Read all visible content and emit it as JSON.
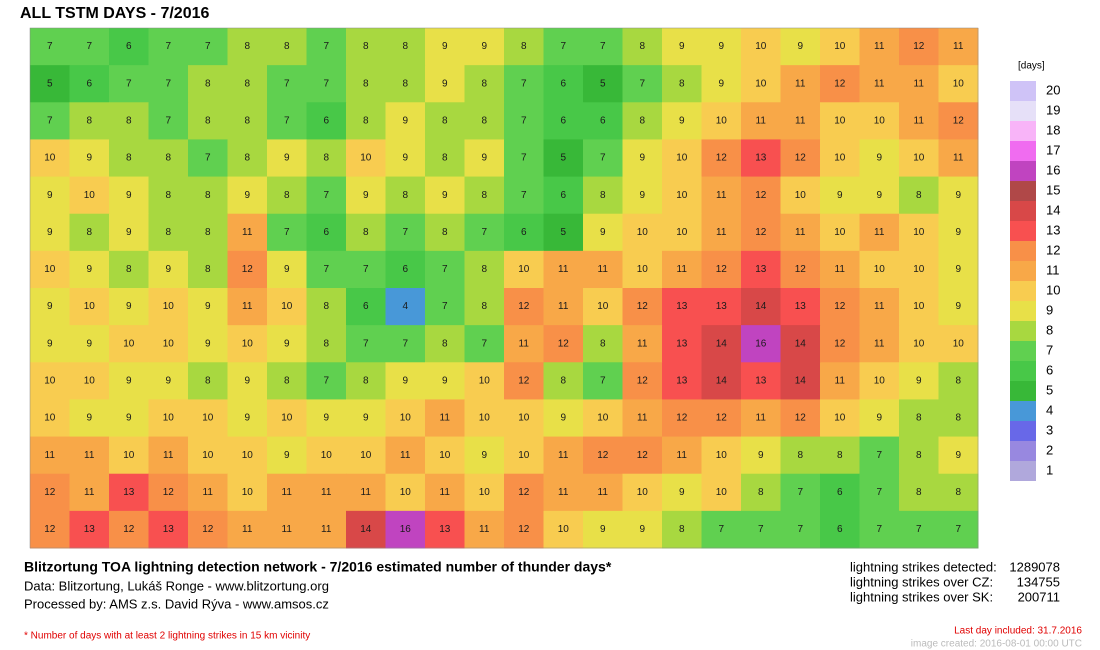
{
  "title": "ALL TSTM DAYS - 7/2016",
  "map": {
    "grid": [
      [
        7,
        7,
        6,
        7,
        7,
        8,
        8,
        7,
        8,
        8,
        9,
        9,
        8,
        7,
        7,
        8,
        9,
        9,
        10,
        9,
        10,
        11,
        12,
        11
      ],
      [
        5,
        6,
        7,
        7,
        8,
        8,
        7,
        7,
        8,
        8,
        9,
        8,
        7,
        6,
        5,
        7,
        8,
        9,
        10,
        11,
        12,
        11,
        11,
        10
      ],
      [
        7,
        8,
        8,
        7,
        8,
        8,
        7,
        6,
        8,
        9,
        8,
        8,
        7,
        6,
        6,
        8,
        9,
        10,
        11,
        11,
        10,
        10,
        11,
        12
      ],
      [
        10,
        9,
        8,
        8,
        7,
        8,
        9,
        8,
        10,
        9,
        8,
        9,
        7,
        5,
        7,
        9,
        10,
        12,
        13,
        12,
        10,
        9,
        10,
        11
      ],
      [
        9,
        10,
        9,
        8,
        8,
        9,
        8,
        7,
        9,
        8,
        9,
        8,
        7,
        6,
        8,
        9,
        10,
        11,
        12,
        10,
        9,
        9,
        8,
        9
      ],
      [
        9,
        8,
        9,
        8,
        8,
        11,
        7,
        6,
        8,
        7,
        8,
        7,
        6,
        5,
        9,
        10,
        10,
        11,
        12,
        11,
        10,
        11,
        10,
        9
      ],
      [
        10,
        9,
        8,
        9,
        8,
        12,
        9,
        7,
        7,
        6,
        7,
        8,
        10,
        11,
        11,
        10,
        11,
        12,
        13,
        12,
        11,
        10,
        10,
        9
      ],
      [
        9,
        10,
        9,
        10,
        9,
        11,
        10,
        8,
        6,
        4,
        7,
        8,
        12,
        11,
        10,
        12,
        13,
        13,
        14,
        13,
        12,
        11,
        10,
        9
      ],
      [
        9,
        9,
        10,
        10,
        9,
        10,
        9,
        8,
        7,
        7,
        8,
        7,
        11,
        12,
        8,
        11,
        13,
        14,
        16,
        14,
        12,
        11,
        10,
        10
      ],
      [
        10,
        10,
        9,
        9,
        8,
        9,
        8,
        7,
        8,
        9,
        9,
        10,
        12,
        8,
        7,
        12,
        13,
        14,
        13,
        14,
        11,
        10,
        9,
        8
      ],
      [
        10,
        9,
        9,
        10,
        10,
        9,
        10,
        9,
        9,
        10,
        11,
        10,
        10,
        9,
        10,
        11,
        12,
        12,
        11,
        12,
        10,
        9,
        8,
        8
      ],
      [
        11,
        11,
        10,
        11,
        10,
        10,
        9,
        10,
        10,
        11,
        10,
        9,
        10,
        11,
        12,
        12,
        11,
        10,
        9,
        8,
        8,
        7,
        8,
        9
      ],
      [
        12,
        11,
        13,
        12,
        11,
        10,
        11,
        11,
        11,
        10,
        11,
        10,
        12,
        11,
        11,
        10,
        9,
        10,
        8,
        7,
        6,
        7,
        8,
        8
      ],
      [
        12,
        13,
        12,
        13,
        12,
        11,
        11,
        11,
        14,
        16,
        13,
        11,
        12,
        10,
        9,
        9,
        8,
        7,
        7,
        7,
        6,
        7,
        7,
        7
      ]
    ]
  },
  "legend": {
    "unit": "[days]",
    "levels": [
      {
        "value": 20,
        "color": "#cfc3f7"
      },
      {
        "value": 19,
        "color": "#e6e0f8"
      },
      {
        "value": 18,
        "color": "#f8b4f8"
      },
      {
        "value": 17,
        "color": "#f06cf0"
      },
      {
        "value": 16,
        "color": "#c044c0"
      },
      {
        "value": 15,
        "color": "#b04848"
      },
      {
        "value": 14,
        "color": "#d84848"
      },
      {
        "value": 13,
        "color": "#f85050"
      },
      {
        "value": 12,
        "color": "#f89048"
      },
      {
        "value": 11,
        "color": "#f8a848"
      },
      {
        "value": 10,
        "color": "#f8cc50"
      },
      {
        "value": 9,
        "color": "#e8e048"
      },
      {
        "value": 8,
        "color": "#a8d840"
      },
      {
        "value": 7,
        "color": "#60d050"
      },
      {
        "value": 6,
        "color": "#48c848"
      },
      {
        "value": 5,
        "color": "#38b838"
      },
      {
        "value": 4,
        "color": "#4898d8"
      },
      {
        "value": 3,
        "color": "#6868e8"
      },
      {
        "value": 2,
        "color": "#9888e0"
      },
      {
        "value": 1,
        "color": "#b0a8dc"
      }
    ]
  },
  "footer": {
    "headline": "Blitzortung TOA lightning detection network - 7/2016  estimated number of thunder days*",
    "data_line": "Data: Blitzortung, Lukáš Ronge - www.blitzortung.org",
    "processed_line": "Processed by: AMS z.s. David Rýva - www.amsos.cz",
    "note": "* Number of days with at least 2 lightning strikes in 15 km vicinity"
  },
  "stats": [
    {
      "label": "lightning strikes detected:",
      "value": 1289078
    },
    {
      "label": "lightning strikes over CZ:",
      "value": 134755
    },
    {
      "label": "lightning strikes over SK:",
      "value": 200711
    }
  ],
  "last_day": "Last day included: 31.7.2016",
  "created": "image created: 2016-08-01 00:00 UTC"
}
